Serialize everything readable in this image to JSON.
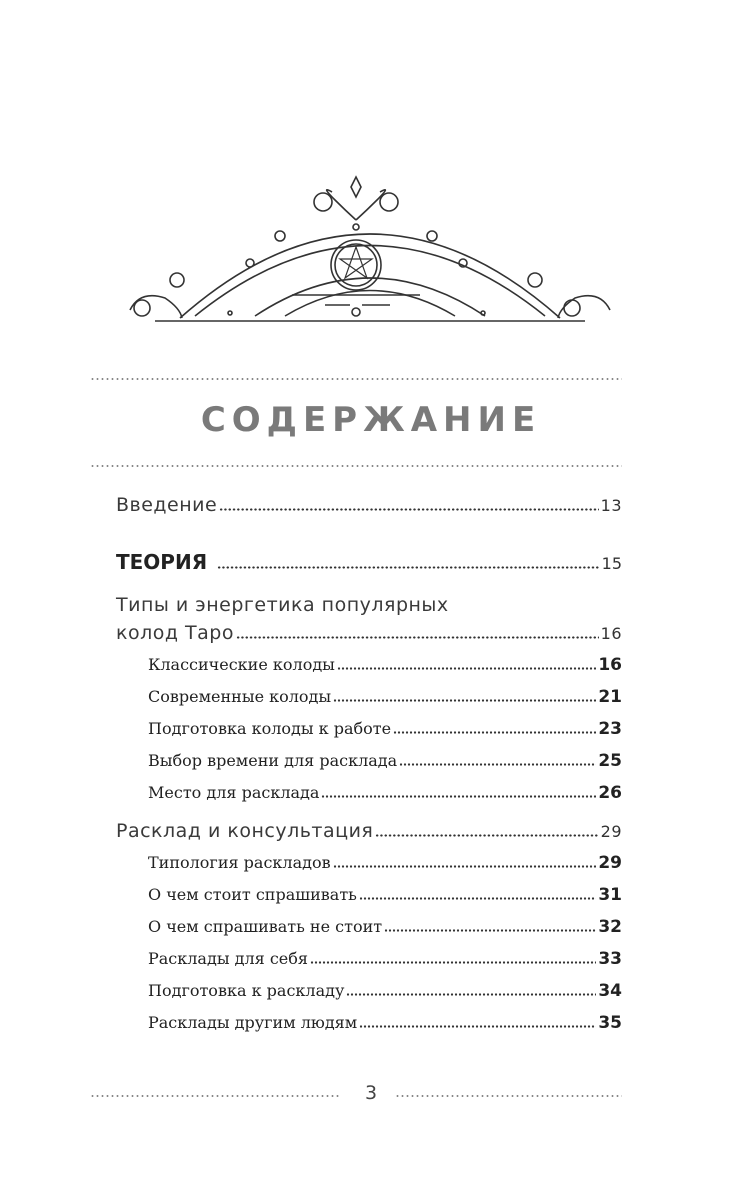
{
  "title": "СОДЕРЖАНИЕ",
  "page_number": "3",
  "toc": [
    {
      "text": "Введение",
      "page": "13"
    },
    {
      "text": "ТЕОРИЯ",
      "page": "15"
    },
    {
      "text_line1": "Типы и энергетика популярных",
      "text": "колод Таро",
      "page": "16"
    },
    {
      "text": "Классические колоды",
      "page": "16"
    },
    {
      "text": "Современные колоды",
      "page": "21"
    },
    {
      "text": "Подготовка колоды к работе",
      "page": "23"
    },
    {
      "text": "Выбор времени для расклада",
      "page": "25"
    },
    {
      "text": "Место для расклада",
      "page": "26"
    },
    {
      "text": "Расклад и консультация",
      "page": "29"
    },
    {
      "text": "Типология раскладов",
      "page": "29"
    },
    {
      "text": "О чем стоит спрашивать",
      "page": "31"
    },
    {
      "text": "О чем спрашивать не стоит",
      "page": "32"
    },
    {
      "text": "Расклады для себя",
      "page": "33"
    },
    {
      "text": "Подготовка к раскладу",
      "page": "34"
    },
    {
      "text": "Расклады другим людям",
      "page": "35"
    }
  ],
  "ornament_icon": "pentacle-arch-ornament"
}
